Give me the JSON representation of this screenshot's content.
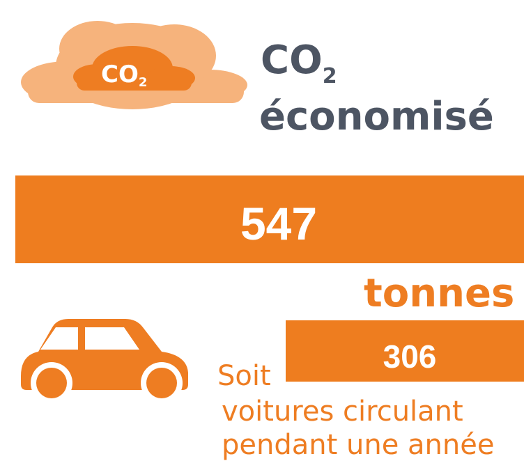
{
  "cloud_label": {
    "main": "CO",
    "sub": "2"
  },
  "title": {
    "line1_main": "CO",
    "line1_sub": "2",
    "line2": "économisé"
  },
  "amount": {
    "value": "547",
    "unit": "tonnes"
  },
  "equivalent": {
    "prefix": "Soit",
    "value": "306",
    "line1": "voitures circulant",
    "line2": "pendant une année"
  }
}
